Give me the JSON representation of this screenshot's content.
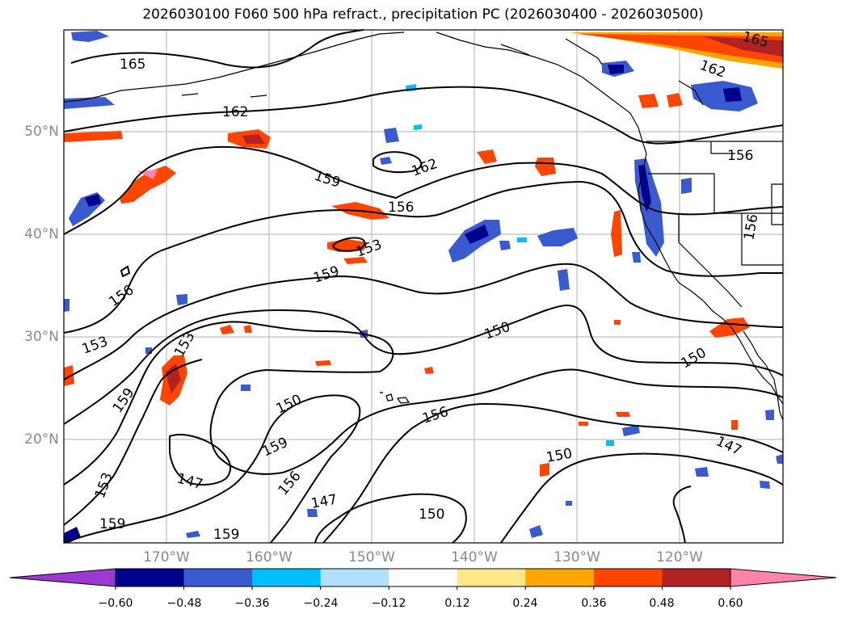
{
  "title": "2026030100 F060 500 hPa refract., precipitation PC (2026030400 - 2026030500)",
  "latitude_labels": [
    "50°N",
    "40°N",
    "30°N",
    "20°N"
  ],
  "longitude_labels": [
    "170°W",
    "160°W",
    "150°W",
    "140°W",
    "130°W",
    "120°W"
  ],
  "contour_labels": [
    "165",
    "162",
    "159",
    "156",
    "153",
    "150",
    "147"
  ],
  "colorbar": {
    "ticks": [
      "−0.60",
      "−0.48",
      "−0.36",
      "−0.24",
      "−0.12",
      "0.12",
      "0.24",
      "0.36",
      "0.48",
      "0.60"
    ],
    "colors": [
      "#9b3ad0",
      "#00008c",
      "#3a5bd0",
      "#00bfff",
      "#b0e2ff",
      "#ffffff",
      "#ffe88a",
      "#ffa500",
      "#ff4500",
      "#b22222",
      "#ff85a8"
    ]
  }
}
